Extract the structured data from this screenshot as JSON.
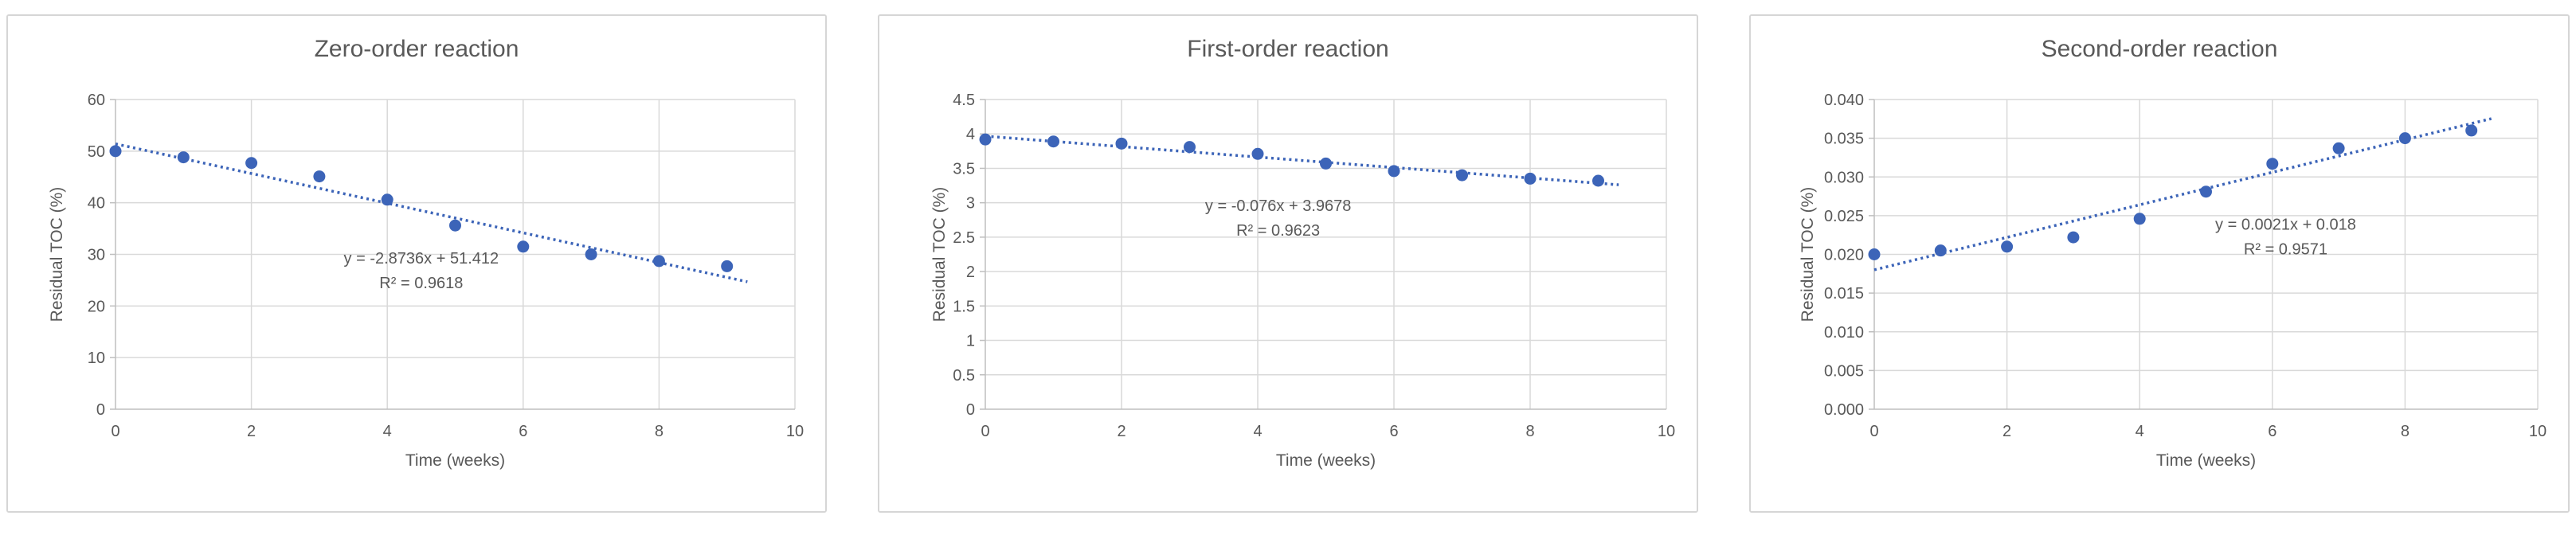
{
  "page": {
    "background": "#FFFFFF"
  },
  "colors": {
    "marker": "#3C64B8",
    "trendline": "#3C64B8",
    "text": "#595959",
    "gridline": "#D9D9D9",
    "axis": "#BFBFBF",
    "panel_border": "#D6D6D6",
    "panel_background": "#FFFFFF"
  },
  "chart_data": [
    {
      "type": "scatter",
      "title": "Zero-order reaction",
      "xlabel": "Time (weeks)",
      "ylabel": "Residual TOC (%)",
      "x": [
        0,
        1,
        2,
        3,
        4,
        5,
        6,
        7,
        8,
        9
      ],
      "values": [
        50,
        48.8,
        47.7,
        45.1,
        40.6,
        35.6,
        31.5,
        30,
        28.7,
        27.7
      ],
      "xlim": [
        0,
        10
      ],
      "ylim": [
        0,
        60
      ],
      "xtick_labels": [
        "0",
        "2",
        "4",
        "6",
        "8",
        "10"
      ],
      "ytick_labels": [
        "0",
        "10",
        "20",
        "30",
        "40",
        "50",
        "60"
      ],
      "grid": true,
      "legend": "none",
      "marker_style": "circle",
      "trendline": {
        "style": "dotted",
        "slope": -2.8736,
        "intercept": 51.412,
        "x_start": 0,
        "x_end": 9.3,
        "equation_label": "y = -2.8736x + 51.412",
        "r2_label": "R² = 0.9618"
      },
      "layout": {
        "plot_left": 135,
        "ytitle_offset": 74,
        "annotation_fx": 0.45,
        "annotation_fy": 0.53
      }
    },
    {
      "type": "scatter",
      "title": "First-order reaction",
      "xlabel": "Time (weeks)",
      "ylabel": "Residual TOC (%)",
      "x": [
        0,
        1,
        2,
        3,
        4,
        5,
        6,
        7,
        8,
        9
      ],
      "values": [
        3.92,
        3.89,
        3.86,
        3.81,
        3.71,
        3.57,
        3.46,
        3.4,
        3.35,
        3.32
      ],
      "xlim": [
        0,
        10
      ],
      "ylim": [
        0,
        4.5
      ],
      "xtick_labels": [
        "0",
        "2",
        "4",
        "6",
        "8",
        "10"
      ],
      "ytick_labels": [
        "0",
        "0.5",
        "1",
        "1.5",
        "2",
        "2.5",
        "3",
        "3.5",
        "4",
        "4.5"
      ],
      "grid": true,
      "legend": "none",
      "marker_style": "circle",
      "trendline": {
        "style": "dotted",
        "slope": -0.076,
        "intercept": 3.9678,
        "x_start": 0,
        "x_end": 9.3,
        "equation_label": "y = -0.076x + 3.9678",
        "r2_label": "R² = 0.9623"
      },
      "layout": {
        "plot_left": 133,
        "ytitle_offset": 58,
        "annotation_fx": 0.43,
        "annotation_fy": 0.36
      }
    },
    {
      "type": "scatter",
      "title": "Second-order reaction",
      "xlabel": "Time (weeks)",
      "ylabel": "Residual TOC (%)",
      "x": [
        0,
        1,
        2,
        3,
        4,
        5,
        6,
        7,
        8,
        9
      ],
      "values": [
        0.02,
        0.0205,
        0.021,
        0.0222,
        0.0246,
        0.0281,
        0.0317,
        0.0337,
        0.035,
        0.036
      ],
      "xlim": [
        0,
        10
      ],
      "ylim": [
        0,
        0.04
      ],
      "xtick_labels": [
        "0",
        "2",
        "4",
        "6",
        "8",
        "10"
      ],
      "ytick_labels": [
        "0.000",
        "0.005",
        "0.010",
        "0.015",
        "0.020",
        "0.025",
        "0.030",
        "0.035",
        "0.040"
      ],
      "grid": true,
      "legend": "none",
      "marker_style": "circle",
      "trendline": {
        "style": "dotted",
        "slope": 0.0021,
        "intercept": 0.018,
        "x_start": 0,
        "x_end": 9.3,
        "equation_label": "y = 0.0021x + 0.018",
        "r2_label": "R² = 0.9571"
      },
      "layout": {
        "plot_left": 155,
        "ytitle_offset": 84,
        "annotation_fx": 0.62,
        "annotation_fy": 0.42
      }
    }
  ]
}
